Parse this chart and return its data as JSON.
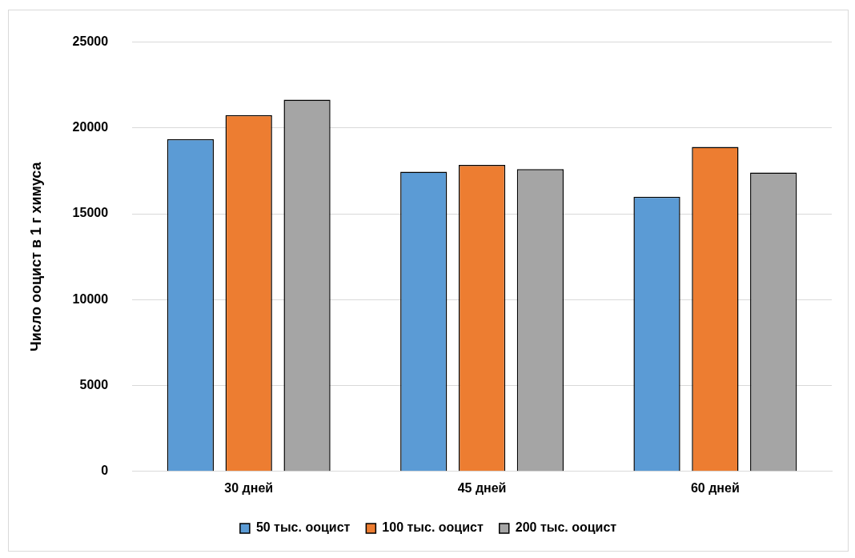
{
  "chart_data": {
    "type": "bar",
    "ylabel": "Число ооцист в 1 г химуса",
    "categories": [
      "30 дней",
      "45 дней",
      "60 дней"
    ],
    "series": [
      {
        "name": "50 тыс. ооцист",
        "color": "#5b9bd5",
        "values": [
          19350,
          17450,
          16000
        ]
      },
      {
        "name": "100 тыс. ооцист",
        "color": "#ed7d31",
        "values": [
          20750,
          17850,
          18900
        ]
      },
      {
        "name": "200 тыс. ооцист",
        "color": "#a5a5a5",
        "values": [
          21650,
          17600,
          17400
        ]
      }
    ],
    "ylim": [
      0,
      25000
    ],
    "yticks": [
      0,
      5000,
      10000,
      15000,
      20000,
      25000
    ],
    "grid": "y",
    "legend": "bottom"
  }
}
